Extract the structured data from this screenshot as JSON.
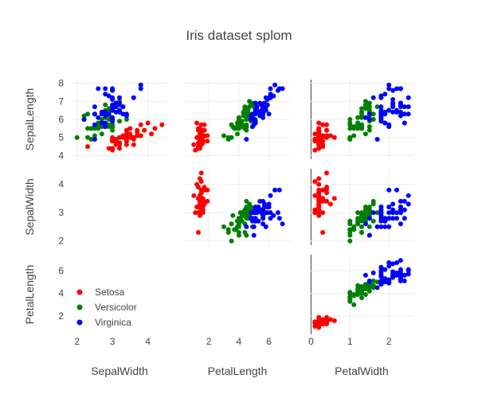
{
  "chart_data": {
    "type": "scatter",
    "title": "Iris dataset splom",
    "grid": true,
    "legend_position": "inside-bottom-left",
    "dimensions": [
      {
        "label": "SepalLength",
        "ticks": [
          4,
          5,
          6,
          7,
          8
        ],
        "range": [
          3.8,
          8.2
        ]
      },
      {
        "label": "SepalWidth",
        "ticks": [
          2,
          3,
          4
        ],
        "range": [
          1.85,
          4.55
        ]
      },
      {
        "label": "PetalLength",
        "ticks": [
          2,
          4,
          6
        ],
        "range": [
          0.4,
          7.4
        ]
      },
      {
        "label": "PetalWidth",
        "ticks": [
          0,
          1,
          2
        ],
        "range": [
          -0.05,
          2.65
        ]
      }
    ],
    "layout": {
      "row_dims": [
        "SepalLength",
        "SepalWidth",
        "PetalLength"
      ],
      "col_dims": [
        "SepalWidth",
        "PetalLength",
        "PetalWidth"
      ],
      "visible_cells": [
        [
          0,
          0
        ],
        [
          0,
          1
        ],
        [
          0,
          2
        ],
        [
          1,
          1
        ],
        [
          1,
          2
        ],
        [
          2,
          2
        ]
      ]
    },
    "series": [
      {
        "name": "Setosa",
        "color": "#ff0000",
        "points": [
          [
            5.1,
            3.5,
            1.4,
            0.2
          ],
          [
            4.9,
            3.0,
            1.4,
            0.2
          ],
          [
            4.7,
            3.2,
            1.3,
            0.2
          ],
          [
            4.6,
            3.1,
            1.5,
            0.2
          ],
          [
            5.0,
            3.6,
            1.4,
            0.2
          ],
          [
            5.4,
            3.9,
            1.7,
            0.4
          ],
          [
            4.6,
            3.4,
            1.4,
            0.3
          ],
          [
            5.0,
            3.4,
            1.5,
            0.2
          ],
          [
            4.4,
            2.9,
            1.4,
            0.2
          ],
          [
            4.9,
            3.1,
            1.5,
            0.1
          ],
          [
            5.4,
            3.7,
            1.5,
            0.2
          ],
          [
            4.8,
            3.4,
            1.6,
            0.2
          ],
          [
            4.8,
            3.0,
            1.4,
            0.1
          ],
          [
            4.3,
            3.0,
            1.1,
            0.1
          ],
          [
            5.8,
            4.0,
            1.2,
            0.2
          ],
          [
            5.7,
            4.4,
            1.5,
            0.4
          ],
          [
            5.4,
            3.9,
            1.3,
            0.4
          ],
          [
            5.1,
            3.5,
            1.4,
            0.3
          ],
          [
            5.7,
            3.8,
            1.7,
            0.3
          ],
          [
            5.1,
            3.8,
            1.5,
            0.3
          ],
          [
            5.4,
            3.4,
            1.7,
            0.2
          ],
          [
            5.1,
            3.7,
            1.5,
            0.4
          ],
          [
            4.6,
            3.6,
            1.0,
            0.2
          ],
          [
            5.1,
            3.3,
            1.7,
            0.5
          ],
          [
            4.8,
            3.4,
            1.9,
            0.2
          ],
          [
            5.0,
            3.0,
            1.6,
            0.2
          ],
          [
            5.0,
            3.4,
            1.6,
            0.4
          ],
          [
            5.2,
            3.5,
            1.5,
            0.2
          ],
          [
            5.2,
            3.4,
            1.4,
            0.2
          ],
          [
            4.7,
            3.2,
            1.6,
            0.2
          ],
          [
            4.8,
            3.1,
            1.6,
            0.2
          ],
          [
            5.4,
            3.4,
            1.5,
            0.4
          ],
          [
            5.2,
            4.1,
            1.5,
            0.1
          ],
          [
            5.5,
            4.2,
            1.4,
            0.2
          ],
          [
            4.9,
            3.1,
            1.5,
            0.2
          ],
          [
            5.0,
            3.2,
            1.2,
            0.2
          ],
          [
            5.5,
            3.5,
            1.3,
            0.2
          ],
          [
            4.9,
            3.6,
            1.4,
            0.1
          ],
          [
            4.4,
            3.0,
            1.3,
            0.2
          ],
          [
            5.1,
            3.4,
            1.5,
            0.2
          ],
          [
            5.0,
            3.5,
            1.3,
            0.3
          ],
          [
            4.5,
            2.3,
            1.3,
            0.3
          ],
          [
            4.4,
            3.2,
            1.3,
            0.2
          ],
          [
            5.0,
            3.5,
            1.6,
            0.6
          ],
          [
            5.1,
            3.8,
            1.9,
            0.4
          ],
          [
            4.8,
            3.0,
            1.4,
            0.3
          ],
          [
            5.1,
            3.8,
            1.6,
            0.2
          ],
          [
            4.6,
            3.2,
            1.4,
            0.2
          ],
          [
            5.3,
            3.7,
            1.5,
            0.2
          ],
          [
            5.0,
            3.3,
            1.4,
            0.2
          ]
        ]
      },
      {
        "name": "Versicolor",
        "color": "#008000",
        "points": [
          [
            7.0,
            3.2,
            4.7,
            1.4
          ],
          [
            6.4,
            3.2,
            4.5,
            1.5
          ],
          [
            6.9,
            3.1,
            4.9,
            1.5
          ],
          [
            5.5,
            2.3,
            4.0,
            1.3
          ],
          [
            6.5,
            2.8,
            4.6,
            1.5
          ],
          [
            5.7,
            2.8,
            4.5,
            1.3
          ],
          [
            6.3,
            3.3,
            4.7,
            1.6
          ],
          [
            4.9,
            2.4,
            3.3,
            1.0
          ],
          [
            6.6,
            2.9,
            4.6,
            1.3
          ],
          [
            5.2,
            2.7,
            3.9,
            1.4
          ],
          [
            5.0,
            2.0,
            3.5,
            1.0
          ],
          [
            5.9,
            3.0,
            4.2,
            1.5
          ],
          [
            6.0,
            2.2,
            4.0,
            1.0
          ],
          [
            6.1,
            2.9,
            4.7,
            1.4
          ],
          [
            5.6,
            2.9,
            3.6,
            1.3
          ],
          [
            6.7,
            3.1,
            4.4,
            1.4
          ],
          [
            5.6,
            3.0,
            4.5,
            1.5
          ],
          [
            5.8,
            2.7,
            4.1,
            1.0
          ],
          [
            6.2,
            2.2,
            4.5,
            1.5
          ],
          [
            5.6,
            2.5,
            3.9,
            1.1
          ],
          [
            5.9,
            3.2,
            4.8,
            1.8
          ],
          [
            6.1,
            2.8,
            4.0,
            1.3
          ],
          [
            6.3,
            2.5,
            4.9,
            1.5
          ],
          [
            6.1,
            2.8,
            4.7,
            1.2
          ],
          [
            6.4,
            2.9,
            4.3,
            1.3
          ],
          [
            6.6,
            3.0,
            4.4,
            1.4
          ],
          [
            6.8,
            2.8,
            4.8,
            1.4
          ],
          [
            6.7,
            3.0,
            5.0,
            1.7
          ],
          [
            6.0,
            2.9,
            4.5,
            1.5
          ],
          [
            5.7,
            2.6,
            3.5,
            1.0
          ],
          [
            5.5,
            2.4,
            3.8,
            1.1
          ],
          [
            5.5,
            2.4,
            3.7,
            1.0
          ],
          [
            5.8,
            2.7,
            3.9,
            1.2
          ],
          [
            6.0,
            2.7,
            5.1,
            1.6
          ],
          [
            5.4,
            3.0,
            4.5,
            1.5
          ],
          [
            6.0,
            3.4,
            4.5,
            1.6
          ],
          [
            6.7,
            3.1,
            4.7,
            1.5
          ],
          [
            6.3,
            2.3,
            4.4,
            1.3
          ],
          [
            5.6,
            3.0,
            4.1,
            1.3
          ],
          [
            5.5,
            2.5,
            4.0,
            1.3
          ],
          [
            5.5,
            2.6,
            4.4,
            1.2
          ],
          [
            6.1,
            3.0,
            4.6,
            1.4
          ],
          [
            5.8,
            2.6,
            4.0,
            1.2
          ],
          [
            5.0,
            2.3,
            3.3,
            1.0
          ],
          [
            5.6,
            2.7,
            4.2,
            1.3
          ],
          [
            5.7,
            3.0,
            4.2,
            1.2
          ],
          [
            5.7,
            2.9,
            4.2,
            1.3
          ],
          [
            6.2,
            2.9,
            4.3,
            1.3
          ],
          [
            5.1,
            2.5,
            3.0,
            1.1
          ],
          [
            5.7,
            2.8,
            4.1,
            1.3
          ]
        ]
      },
      {
        "name": "Virginica",
        "color": "#0000ff",
        "points": [
          [
            6.3,
            3.3,
            6.0,
            2.5
          ],
          [
            5.8,
            2.7,
            5.1,
            1.9
          ],
          [
            7.1,
            3.0,
            5.9,
            2.1
          ],
          [
            6.3,
            2.9,
            5.6,
            1.8
          ],
          [
            6.5,
            3.0,
            5.8,
            2.2
          ],
          [
            7.6,
            3.0,
            6.6,
            2.1
          ],
          [
            4.9,
            2.5,
            4.5,
            1.7
          ],
          [
            7.3,
            2.9,
            6.3,
            1.8
          ],
          [
            6.7,
            2.5,
            5.8,
            1.8
          ],
          [
            7.2,
            3.6,
            6.1,
            2.5
          ],
          [
            6.5,
            3.2,
            5.1,
            2.0
          ],
          [
            6.4,
            2.7,
            5.3,
            1.9
          ],
          [
            6.8,
            3.0,
            5.5,
            2.1
          ],
          [
            5.7,
            2.5,
            5.0,
            2.0
          ],
          [
            5.8,
            2.8,
            5.1,
            2.4
          ],
          [
            6.4,
            3.2,
            5.3,
            2.3
          ],
          [
            6.5,
            3.0,
            5.5,
            1.8
          ],
          [
            7.7,
            3.8,
            6.7,
            2.2
          ],
          [
            7.7,
            2.6,
            6.9,
            2.3
          ],
          [
            6.0,
            2.2,
            5.0,
            1.5
          ],
          [
            6.9,
            3.2,
            5.7,
            2.3
          ],
          [
            5.6,
            2.8,
            4.9,
            2.0
          ],
          [
            7.7,
            2.8,
            6.7,
            2.0
          ],
          [
            6.3,
            2.7,
            4.9,
            1.8
          ],
          [
            6.7,
            3.3,
            5.7,
            2.1
          ],
          [
            7.2,
            3.2,
            6.0,
            1.8
          ],
          [
            6.2,
            2.8,
            4.8,
            1.8
          ],
          [
            6.1,
            3.0,
            4.9,
            1.8
          ],
          [
            6.4,
            2.8,
            5.6,
            2.1
          ],
          [
            7.2,
            3.0,
            5.8,
            1.6
          ],
          [
            7.4,
            2.8,
            6.1,
            1.9
          ],
          [
            7.9,
            3.8,
            6.4,
            2.0
          ],
          [
            6.4,
            2.8,
            5.6,
            2.2
          ],
          [
            6.3,
            2.8,
            5.1,
            1.5
          ],
          [
            6.1,
            2.6,
            5.6,
            1.4
          ],
          [
            7.7,
            3.0,
            6.1,
            2.3
          ],
          [
            6.3,
            3.4,
            5.6,
            2.4
          ],
          [
            6.4,
            3.1,
            5.5,
            1.8
          ],
          [
            6.0,
            3.0,
            4.8,
            1.8
          ],
          [
            6.9,
            3.1,
            5.4,
            2.1
          ],
          [
            6.7,
            3.1,
            5.6,
            2.4
          ],
          [
            6.9,
            3.1,
            5.1,
            2.3
          ],
          [
            5.8,
            2.7,
            5.1,
            1.9
          ],
          [
            6.8,
            3.2,
            5.9,
            2.3
          ],
          [
            6.7,
            3.3,
            5.7,
            2.5
          ],
          [
            6.7,
            3.0,
            5.2,
            2.3
          ],
          [
            6.3,
            2.5,
            5.0,
            1.9
          ],
          [
            6.5,
            3.0,
            5.2,
            2.0
          ],
          [
            6.2,
            3.4,
            5.4,
            2.3
          ],
          [
            5.9,
            3.0,
            5.1,
            1.8
          ]
        ]
      }
    ]
  }
}
